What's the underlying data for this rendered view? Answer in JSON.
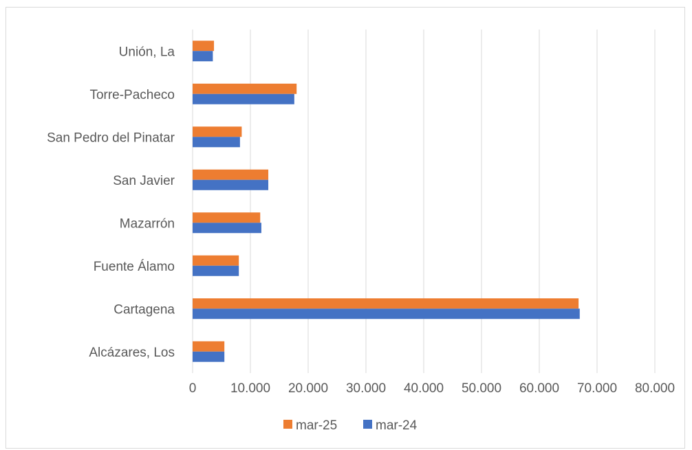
{
  "chart_data": {
    "type": "bar",
    "orientation": "horizontal",
    "categories": [
      "Alcázares, Los",
      "Cartagena",
      "Fuente Álamo",
      "Mazarrón",
      "San Javier",
      "San Pedro del Pinatar",
      "Torre-Pacheco",
      "Unión, La"
    ],
    "series": [
      {
        "name": "mar-25",
        "color": "#ED7D31",
        "values": [
          5500,
          66800,
          8000,
          11700,
          13100,
          8500,
          18000,
          3700
        ]
      },
      {
        "name": "mar-24",
        "color": "#4472C4",
        "values": [
          5500,
          67000,
          8000,
          11900,
          13100,
          8200,
          17600,
          3500
        ]
      }
    ],
    "x_ticks": [
      "0",
      "10.000",
      "20.000",
      "30.000",
      "40.000",
      "50.000",
      "60.000",
      "70.000",
      "80.000"
    ],
    "xlim": [
      0,
      80000
    ],
    "grid": true,
    "legend_position": "bottom",
    "gridline_color": "#d9d9d9"
  }
}
